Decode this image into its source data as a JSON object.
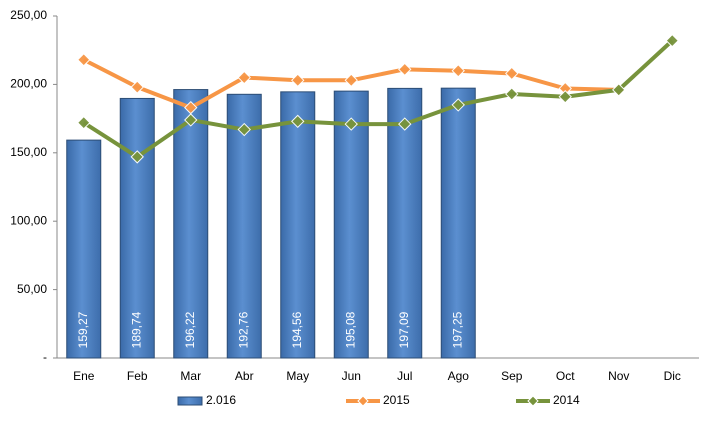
{
  "chart_data": {
    "type": "bar_line",
    "categories": [
      "Ene",
      "Feb",
      "Mar",
      "Abr",
      "May",
      "Jun",
      "Jul",
      "Ago",
      "Sep",
      "Oct",
      "Nov",
      "Dic"
    ],
    "series": [
      {
        "name": "2.016",
        "type": "bar",
        "color": "#4f81bd",
        "values": [
          159.27,
          189.74,
          196.22,
          192.76,
          194.56,
          195.08,
          197.09,
          197.25,
          null,
          null,
          null,
          null
        ],
        "value_labels": [
          "159,27",
          "189,74",
          "196,22",
          "192,76",
          "194,56",
          "195,08",
          "197,09",
          "197,25",
          null,
          null,
          null,
          null
        ]
      },
      {
        "name": "2015",
        "type": "line",
        "color": "#f79646",
        "values": [
          218,
          198,
          183,
          205,
          203,
          203,
          211,
          210,
          208,
          197,
          196,
          null
        ]
      },
      {
        "name": "2014",
        "type": "line",
        "color": "#77933c",
        "values": [
          172,
          147,
          174,
          167,
          173,
          171,
          171,
          185,
          193,
          191,
          196,
          232
        ]
      }
    ],
    "ylim": [
      0,
      250
    ],
    "yticks": [
      {
        "value": 0,
        "label": "-"
      },
      {
        "value": 50,
        "label": "50,00"
      },
      {
        "value": 100,
        "label": "100,00"
      },
      {
        "value": 150,
        "label": "150,00"
      },
      {
        "value": 200,
        "label": "200,00"
      },
      {
        "value": 250,
        "label": "250,00"
      }
    ],
    "legend": "bottom"
  }
}
